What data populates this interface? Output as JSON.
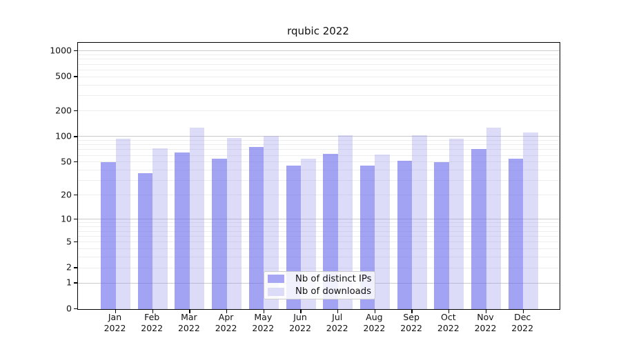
{
  "chart_data": {
    "type": "bar",
    "title": "rqubic 2022",
    "year_label": "2022",
    "y_scale": "log1p",
    "grid": true,
    "legend_position": "lower center",
    "categories": [
      "Jan",
      "Feb",
      "Mar",
      "Apr",
      "May",
      "Jun",
      "Jul",
      "Aug",
      "Sep",
      "Oct",
      "Nov",
      "Dec"
    ],
    "y_ticks": [
      0,
      1,
      2,
      5,
      10,
      20,
      50,
      100,
      200,
      500,
      1000
    ],
    "major_gridlines": [
      1,
      10,
      100,
      1000
    ],
    "minor_gridlines": [
      2,
      3,
      4,
      5,
      6,
      7,
      8,
      9,
      20,
      30,
      40,
      50,
      60,
      70,
      80,
      90,
      200,
      300,
      400,
      500,
      600,
      700,
      800,
      900
    ],
    "ylim": [
      0,
      1240
    ],
    "series": [
      {
        "name": "Nb of distinct IPs",
        "color": "rgba(107,107,237,0.62)",
        "legend_color": "#a6a6f4",
        "values": [
          50,
          37,
          65,
          55,
          75,
          45,
          62,
          45,
          52,
          50,
          71,
          55
        ]
      },
      {
        "name": "Nb of downloads",
        "color": "rgba(148,148,238,0.33)",
        "legend_color": "#dcdcf9",
        "values": [
          95,
          73,
          126,
          96,
          101,
          55,
          103,
          61,
          103,
          94,
          127,
          111
        ]
      }
    ]
  },
  "colors": {
    "background": "#ffffff",
    "axis": "#000000",
    "major_grid": "#cbcbcb",
    "minor_grid": "#ededed",
    "text": "#111111"
  }
}
